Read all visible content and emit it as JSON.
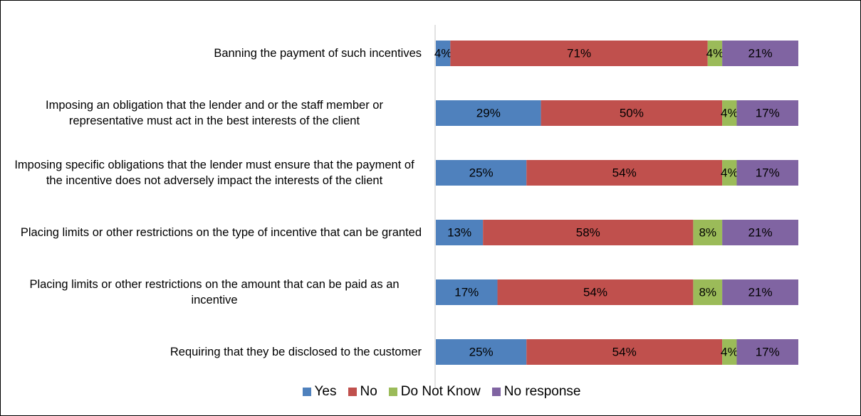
{
  "chart_data": {
    "type": "stacked-bar-horizontal",
    "categories": [
      "Banning the payment of such incentives",
      "Imposing an obligation that the lender and or the staff member or representative must act in the best interests of the client",
      "Imposing specific obligations that the lender must ensure that the payment of the incentive does not adversely impact the interests of the client",
      "Placing limits or other restrictions on the type of incentive that can be granted",
      "Placing limits or other restrictions on the amount that can be paid as an incentive",
      "Requiring that they be disclosed to the customer"
    ],
    "series": [
      {
        "name": "Yes",
        "color": "#4f81bd",
        "values": [
          4,
          29,
          25,
          13,
          17,
          25
        ],
        "value_labels": [
          "4%",
          "29%",
          "25%",
          "13%",
          "17%",
          "25%"
        ]
      },
      {
        "name": "No",
        "color": "#c0504d",
        "values": [
          71,
          50,
          54,
          58,
          54,
          54
        ],
        "value_labels": [
          "71%",
          "50%",
          "54%",
          "58%",
          "54%",
          "54%"
        ]
      },
      {
        "name": "Do Not Know",
        "color": "#9bbb59",
        "values": [
          4,
          4,
          4,
          8,
          8,
          4
        ],
        "value_labels": [
          "4%",
          "4%",
          "4%",
          "8%",
          "8%",
          "4%"
        ]
      },
      {
        "name": "No response",
        "color": "#8064a2",
        "values": [
          21,
          17,
          17,
          21,
          21,
          17
        ],
        "value_labels": [
          "21%",
          "17%",
          "17%",
          "21%",
          "21%",
          "17%"
        ]
      }
    ],
    "legend": "bottom"
  }
}
